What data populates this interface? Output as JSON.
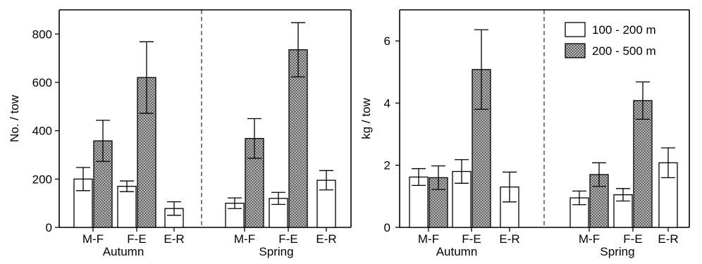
{
  "chart_data": [
    {
      "type": "bar",
      "ylabel": "No. / tow",
      "ylim": [
        0,
        900
      ],
      "yticks": [
        0,
        200,
        400,
        600,
        800
      ],
      "groups": [
        {
          "season": "Autumn",
          "categories": [
            "M-F",
            "F-E",
            "E-R"
          ]
        },
        {
          "season": "Spring",
          "categories": [
            "M-F",
            "F-E",
            "E-R"
          ]
        }
      ],
      "series": [
        {
          "name": "100 - 200 m",
          "style": "open",
          "values": [
            200,
            170,
            78,
            100,
            120,
            195
          ],
          "err": [
            48,
            22,
            28,
            22,
            25,
            40
          ]
        },
        {
          "name": "200 - 500 m",
          "style": "stippled",
          "values": [
            358,
            620,
            null,
            368,
            735,
            null
          ],
          "err": [
            85,
            148,
            null,
            82,
            112,
            null
          ]
        }
      ],
      "legend": false
    },
    {
      "type": "bar",
      "ylabel": "kg / tow",
      "ylim": [
        0,
        7
      ],
      "yticks": [
        0,
        2,
        4,
        6
      ],
      "groups": [
        {
          "season": "Autumn",
          "categories": [
            "M-F",
            "F-E",
            "E-R"
          ]
        },
        {
          "season": "Spring",
          "categories": [
            "M-F",
            "F-E",
            "E-R"
          ]
        }
      ],
      "series": [
        {
          "name": "100 - 200 m",
          "style": "open",
          "values": [
            1.62,
            1.8,
            1.3,
            0.95,
            1.05,
            2.08
          ],
          "err": [
            0.27,
            0.38,
            0.48,
            0.22,
            0.2,
            0.48
          ]
        },
        {
          "name": "200 - 500 m",
          "style": "stippled",
          "values": [
            1.6,
            5.08,
            null,
            1.7,
            4.08,
            null
          ],
          "err": [
            0.38,
            1.28,
            null,
            0.38,
            0.6,
            null
          ]
        }
      ],
      "legend": "top-right"
    }
  ]
}
